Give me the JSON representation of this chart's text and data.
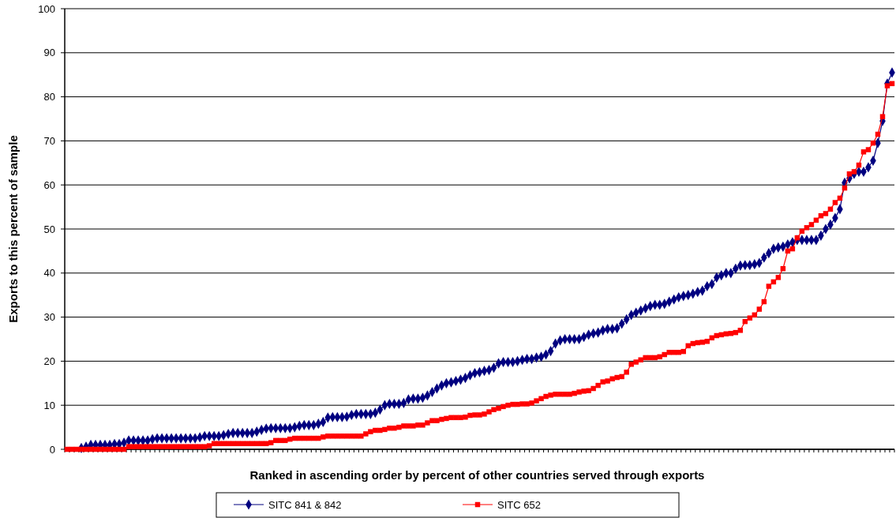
{
  "chart_data": {
    "type": "line",
    "xlabel": "Ranked in ascending order by percent of other countries served through exports",
    "ylabel": "Exports to this percent of sample",
    "categories": [
      null,
      null,
      null,
      null,
      null,
      null,
      null,
      null,
      null,
      null,
      null,
      null,
      null,
      null,
      null,
      null,
      null,
      null,
      null,
      null,
      null,
      null,
      null,
      null,
      null,
      null,
      null,
      null,
      null,
      null,
      null,
      null,
      null,
      null,
      null,
      null,
      null,
      null,
      null,
      null,
      null,
      null,
      null,
      null,
      null,
      null,
      null,
      null,
      null,
      null,
      null,
      null,
      null,
      null,
      null,
      null,
      null,
      null,
      null,
      null,
      null,
      null,
      null,
      null,
      null,
      null,
      null,
      null,
      null,
      null,
      null,
      null,
      null,
      null,
      null,
      null,
      null,
      null,
      null,
      null,
      null,
      null,
      null,
      null,
      null,
      null,
      null,
      null,
      null,
      null,
      null,
      null,
      null,
      null,
      null,
      null,
      null,
      null,
      null,
      null,
      null,
      null,
      null,
      null,
      null,
      null,
      null,
      null,
      null,
      null,
      null,
      null,
      null,
      null,
      null,
      null,
      null,
      null,
      null,
      null,
      null,
      null,
      null,
      null,
      null,
      null,
      null,
      null,
      null,
      null,
      null,
      null,
      null,
      null,
      null,
      null,
      null,
      null,
      null,
      null,
      null,
      null,
      null,
      null,
      null,
      null,
      null,
      null,
      null,
      null,
      null,
      null,
      null,
      null,
      null,
      null,
      null,
      null,
      null,
      null,
      null,
      null,
      null,
      null,
      null,
      null,
      null,
      null,
      null,
      null,
      null,
      null,
      null,
      null,
      null
    ],
    "series": [
      {
        "name": "SITC 841 & 842",
        "color": "#000080",
        "marker": "diamond",
        "values": [
          null,
          null,
          null,
          0.3,
          0.6,
          1,
          1,
          1,
          1,
          1,
          1.2,
          1.2,
          1.5,
          2,
          2,
          2,
          2,
          2,
          2.3,
          2.5,
          2.5,
          2.5,
          2.5,
          2.5,
          2.5,
          2.5,
          2.5,
          2.5,
          2.7,
          3,
          3,
          3,
          3,
          3.2,
          3.5,
          3.7,
          3.7,
          3.7,
          3.7,
          3.7,
          4,
          4.4,
          4.7,
          4.8,
          4.8,
          4.8,
          4.8,
          4.8,
          5,
          5.3,
          5.5,
          5.5,
          5.5,
          5.8,
          6.2,
          7.2,
          7.3,
          7.3,
          7.3,
          7.4,
          7.8,
          8,
          8,
          8,
          8,
          8.3,
          9,
          10,
          10.3,
          10.3,
          10.3,
          10.5,
          11.3,
          11.5,
          11.5,
          11.7,
          12.2,
          13,
          13.8,
          14.5,
          15,
          15.2,
          15.5,
          15.8,
          16.2,
          16.8,
          17.3,
          17.5,
          17.8,
          18,
          18.5,
          19.5,
          19.8,
          19.8,
          19.8,
          20,
          20.3,
          20.5,
          20.5,
          20.8,
          21,
          21.5,
          22.3,
          24,
          24.7,
          25,
          25,
          25,
          25,
          25.5,
          26,
          26.3,
          26.5,
          27,
          27.3,
          27.3,
          27.5,
          28.5,
          29.5,
          30.5,
          31,
          31.5,
          32,
          32.5,
          32.8,
          32.8,
          33,
          33.5,
          34,
          34.5,
          34.8,
          35,
          35.3,
          35.7,
          36,
          37,
          37.5,
          39,
          39.5,
          40,
          40,
          41,
          41.7,
          41.8,
          41.8,
          42,
          42.3,
          43.5,
          44.5,
          45.5,
          45.8,
          46,
          46.5,
          47,
          47.5,
          47.5,
          47.5,
          47.5,
          47.5,
          48.5,
          50,
          51,
          52.5,
          54.5,
          60.5,
          61.5,
          62.5,
          63,
          63,
          64,
          65.5,
          69.5,
          74.5,
          83,
          85.5
        ]
      },
      {
        "name": "SITC 652",
        "color": "#ff0000",
        "marker": "square",
        "values": [
          0,
          0,
          0,
          0,
          0,
          0,
          0,
          0,
          0,
          0,
          0,
          0,
          0,
          0.6,
          0.6,
          0.6,
          0.6,
          0.6,
          0.6,
          0.6,
          0.6,
          0.6,
          0.6,
          0.6,
          0.6,
          0.6,
          0.6,
          0.6,
          0.6,
          0.6,
          0.8,
          1.3,
          1.3,
          1.3,
          1.3,
          1.3,
          1.3,
          1.3,
          1.3,
          1.3,
          1.3,
          1.3,
          1.3,
          1.5,
          2,
          2,
          2,
          2.3,
          2.5,
          2.5,
          2.5,
          2.5,
          2.5,
          2.5,
          2.8,
          3,
          3,
          3,
          3,
          3,
          3,
          3,
          3,
          3.5,
          4,
          4.3,
          4.3,
          4.5,
          4.8,
          4.8,
          5,
          5.3,
          5.3,
          5.3,
          5.5,
          5.5,
          6,
          6.5,
          6.5,
          6.8,
          7,
          7.2,
          7.2,
          7.2,
          7.3,
          7.7,
          7.8,
          7.8,
          8,
          8.5,
          9,
          9.3,
          9.7,
          10,
          10.2,
          10.2,
          10.3,
          10.3,
          10.5,
          11,
          11.5,
          12,
          12.3,
          12.5,
          12.5,
          12.5,
          12.5,
          12.7,
          13,
          13.2,
          13.3,
          13.8,
          14.5,
          15.3,
          15.5,
          16,
          16.3,
          16.5,
          17.5,
          19.3,
          19.8,
          20.3,
          20.8,
          20.8,
          20.8,
          21,
          21.5,
          22,
          22,
          22,
          22.2,
          23.5,
          24,
          24.2,
          24.3,
          24.5,
          25.3,
          25.8,
          26,
          26.2,
          26.3,
          26.5,
          27,
          29,
          29.8,
          30.5,
          31.8,
          33.5,
          37,
          38,
          39,
          41,
          45,
          45.5,
          48,
          49.5,
          50.3,
          51,
          52,
          53,
          53.5,
          54.5,
          56,
          57,
          59.3,
          62.5,
          63,
          64.5,
          67.5,
          68,
          69.5,
          71.5,
          75.5,
          82.5,
          83
        ]
      }
    ],
    "ylim": [
      0,
      100
    ],
    "yticks": [
      0,
      10,
      20,
      30,
      40,
      50,
      60,
      70,
      80,
      90,
      100
    ],
    "grid": "y",
    "legend": "bottom",
    "line_style": "solid"
  }
}
